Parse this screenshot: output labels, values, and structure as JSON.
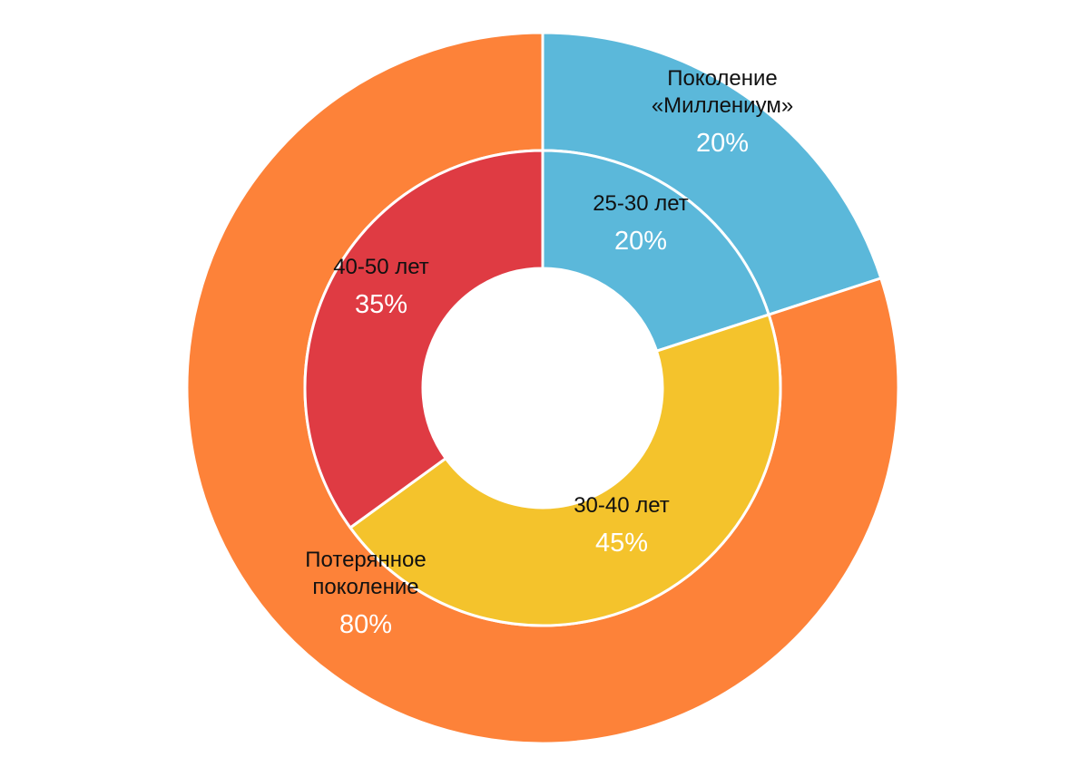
{
  "chart_data": {
    "type": "donut",
    "rings": [
      {
        "categories": [
          "Поколение «Миллениум»",
          "Потерянное поколение"
        ],
        "values": [
          20,
          80
        ],
        "value_labels": [
          "20%",
          "80%"
        ],
        "colors": [
          "#5bb8da",
          "#fd8239"
        ]
      },
      {
        "categories": [
          "25-30 лет",
          "30-40 лет",
          "40-50 лет"
        ],
        "values": [
          20,
          45,
          35
        ],
        "value_labels": [
          "20%",
          "45%",
          "35%"
        ],
        "colors": [
          "#5bb8da",
          "#f4c32c",
          "#df3b43"
        ]
      }
    ]
  }
}
